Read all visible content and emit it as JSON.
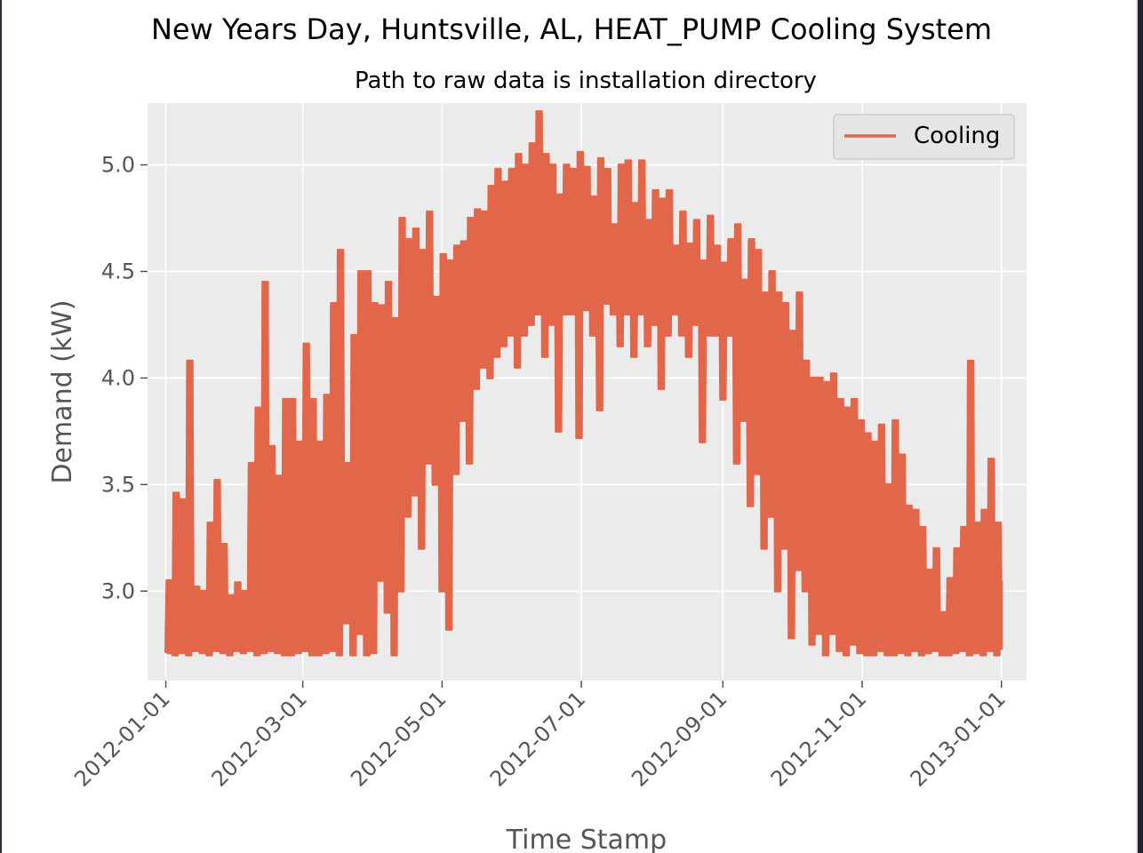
{
  "chart_data": {
    "type": "line",
    "title": "New Years Day, Huntsville, AL, HEAT_PUMP Cooling System",
    "subtitle": "Path to raw data is installation directory",
    "xlabel": "Time Stamp",
    "ylabel": "Demand (kW)",
    "xlim": [
      "2011-12-24",
      "2013-01-12"
    ],
    "ylim": [
      2.58,
      5.29
    ],
    "x_ticks": [
      "2012-01-01",
      "2012-03-01",
      "2012-05-01",
      "2012-07-01",
      "2012-09-01",
      "2012-11-01",
      "2013-01-01"
    ],
    "y_ticks": [
      "3.0",
      "3.5",
      "4.0",
      "4.5",
      "5.0"
    ],
    "grid": true,
    "legend_position": "top-right",
    "colors": {
      "line": "#E2674A",
      "plot_bg": "#EBEBEB",
      "grid": "#FFFFFF"
    },
    "series": [
      {
        "name": "Cooling",
        "x": [
          "2012-01-01",
          "2012-01-04",
          "2012-01-07",
          "2012-01-10",
          "2012-01-13",
          "2012-01-16",
          "2012-01-19",
          "2012-01-22",
          "2012-01-25",
          "2012-01-28",
          "2012-01-31",
          "2012-02-03",
          "2012-02-06",
          "2012-02-09",
          "2012-02-12",
          "2012-02-15",
          "2012-02-18",
          "2012-02-21",
          "2012-02-24",
          "2012-02-27",
          "2012-03-01",
          "2012-03-04",
          "2012-03-07",
          "2012-03-10",
          "2012-03-13",
          "2012-03-16",
          "2012-03-19",
          "2012-03-22",
          "2012-03-25",
          "2012-03-28",
          "2012-03-31",
          "2012-04-03",
          "2012-04-06",
          "2012-04-09",
          "2012-04-12",
          "2012-04-15",
          "2012-04-18",
          "2012-04-21",
          "2012-04-24",
          "2012-04-27",
          "2012-04-30",
          "2012-05-03",
          "2012-05-06",
          "2012-05-09",
          "2012-05-12",
          "2012-05-15",
          "2012-05-18",
          "2012-05-21",
          "2012-05-24",
          "2012-05-27",
          "2012-05-30",
          "2012-06-02",
          "2012-06-05",
          "2012-06-08",
          "2012-06-11",
          "2012-06-14",
          "2012-06-17",
          "2012-06-20",
          "2012-06-23",
          "2012-06-26",
          "2012-06-29",
          "2012-07-02",
          "2012-07-05",
          "2012-07-08",
          "2012-07-11",
          "2012-07-14",
          "2012-07-17",
          "2012-07-20",
          "2012-07-23",
          "2012-07-26",
          "2012-07-29",
          "2012-08-01",
          "2012-08-04",
          "2012-08-07",
          "2012-08-10",
          "2012-08-13",
          "2012-08-16",
          "2012-08-19",
          "2012-08-22",
          "2012-08-25",
          "2012-08-28",
          "2012-08-31",
          "2012-09-03",
          "2012-09-06",
          "2012-09-09",
          "2012-09-12",
          "2012-09-15",
          "2012-09-18",
          "2012-09-21",
          "2012-09-24",
          "2012-09-27",
          "2012-09-30",
          "2012-10-03",
          "2012-10-06",
          "2012-10-09",
          "2012-10-12",
          "2012-10-15",
          "2012-10-18",
          "2012-10-21",
          "2012-10-24",
          "2012-10-27",
          "2012-10-30",
          "2012-11-02",
          "2012-11-05",
          "2012-11-08",
          "2012-11-11",
          "2012-11-14",
          "2012-11-17",
          "2012-11-20",
          "2012-11-23",
          "2012-11-26",
          "2012-11-29",
          "2012-12-02",
          "2012-12-05",
          "2012-12-08",
          "2012-12-11",
          "2012-12-14",
          "2012-12-17",
          "2012-12-20",
          "2012-12-23",
          "2012-12-26",
          "2012-12-29",
          "2013-01-01"
        ],
        "min": [
          2.71,
          2.7,
          2.71,
          2.7,
          2.72,
          2.71,
          2.7,
          2.72,
          2.71,
          2.7,
          2.72,
          2.71,
          2.72,
          2.7,
          2.71,
          2.72,
          2.71,
          2.7,
          2.7,
          2.71,
          2.72,
          2.7,
          2.7,
          2.71,
          2.72,
          2.7,
          2.85,
          2.7,
          2.8,
          2.7,
          2.71,
          3.05,
          2.9,
          2.7,
          3.0,
          3.35,
          3.45,
          3.2,
          3.6,
          3.5,
          3.0,
          2.82,
          3.55,
          3.8,
          3.6,
          3.95,
          4.05,
          4.0,
          4.1,
          4.15,
          4.2,
          4.05,
          4.2,
          4.25,
          4.3,
          4.1,
          4.25,
          3.75,
          4.3,
          4.3,
          3.72,
          4.32,
          4.2,
          3.85,
          4.35,
          4.3,
          4.15,
          4.3,
          4.1,
          4.3,
          4.15,
          4.25,
          3.95,
          4.2,
          4.3,
          4.2,
          4.1,
          4.25,
          3.7,
          4.2,
          4.2,
          3.9,
          4.2,
          3.6,
          3.8,
          3.4,
          3.55,
          3.2,
          3.35,
          3.0,
          3.2,
          2.78,
          3.1,
          3.0,
          2.75,
          2.8,
          2.7,
          2.8,
          2.72,
          2.7,
          2.75,
          2.71,
          2.7,
          2.7,
          2.72,
          2.7,
          2.7,
          2.71,
          2.7,
          2.72,
          2.7,
          2.71,
          2.72,
          2.7,
          2.7,
          2.71,
          2.72,
          2.7,
          2.71,
          2.7,
          2.72,
          2.7,
          2.73
        ],
        "max": [
          3.05,
          3.46,
          3.43,
          4.08,
          3.02,
          3.0,
          3.32,
          3.52,
          3.22,
          2.98,
          3.04,
          3.0,
          3.6,
          3.86,
          4.45,
          3.68,
          3.54,
          3.9,
          3.9,
          3.7,
          4.16,
          3.9,
          3.7,
          3.92,
          4.35,
          4.6,
          3.6,
          4.2,
          4.5,
          4.5,
          4.35,
          4.34,
          4.45,
          4.28,
          4.75,
          4.65,
          4.7,
          4.6,
          4.78,
          4.38,
          4.58,
          4.55,
          4.62,
          4.64,
          4.75,
          4.79,
          4.78,
          4.9,
          4.98,
          4.92,
          4.98,
          5.05,
          5.0,
          5.1,
          5.25,
          5.05,
          5.0,
          4.86,
          5.0,
          4.98,
          5.06,
          4.99,
          4.85,
          5.03,
          4.98,
          4.72,
          5.0,
          5.02,
          4.82,
          5.02,
          4.74,
          4.88,
          4.84,
          4.88,
          4.62,
          4.78,
          4.63,
          4.74,
          4.55,
          4.76,
          4.62,
          4.54,
          4.65,
          4.72,
          4.46,
          4.65,
          4.6,
          4.4,
          4.5,
          4.4,
          4.35,
          4.22,
          4.4,
          4.08,
          4.0,
          4.0,
          3.98,
          4.02,
          3.9,
          3.86,
          3.9,
          3.8,
          3.74,
          3.7,
          3.78,
          3.5,
          3.8,
          3.64,
          3.4,
          3.38,
          3.3,
          3.1,
          3.2,
          2.9,
          3.06,
          3.2,
          3.3,
          4.08,
          3.32,
          3.38,
          3.62,
          3.32,
          3.05
        ]
      }
    ]
  }
}
